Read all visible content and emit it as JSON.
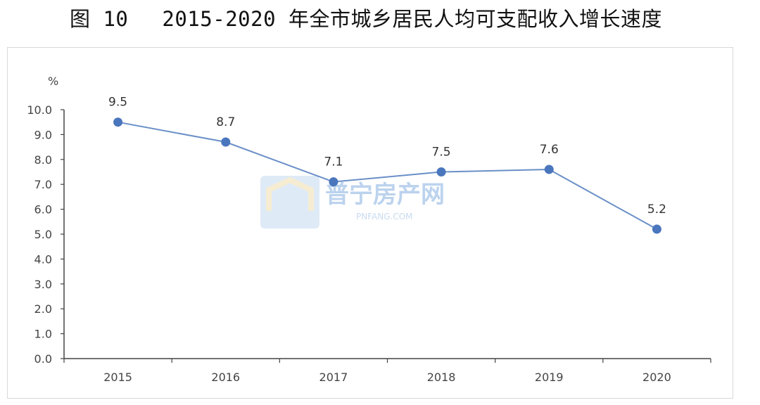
{
  "figure": {
    "number": "图 10",
    "title": "2015-2020 年全市城乡居民人均可支配收入增长速度"
  },
  "watermark": {
    "name": "普宁房产网",
    "domain": "PNFANG.COM"
  },
  "chart_data": {
    "type": "line",
    "title": "2015-2020 年全市城乡居民人均可支配收入增长速度",
    "ylabel": "%",
    "ylim": [
      0,
      10
    ],
    "yticks": [
      "0.0",
      "1.0",
      "2.0",
      "3.0",
      "4.0",
      "5.0",
      "6.0",
      "7.0",
      "8.0",
      "9.0",
      "10.0"
    ],
    "categories": [
      "2015",
      "2016",
      "2017",
      "2018",
      "2019",
      "2020"
    ],
    "values": [
      9.5,
      8.7,
      7.1,
      7.5,
      7.6,
      5.2
    ],
    "data_labels": [
      "9.5",
      "8.7",
      "7.1",
      "7.5",
      "7.6",
      "5.2"
    ],
    "line_color": "#6a8fc7",
    "marker_color": "#4a76bd",
    "grid": false,
    "legend": "none"
  }
}
